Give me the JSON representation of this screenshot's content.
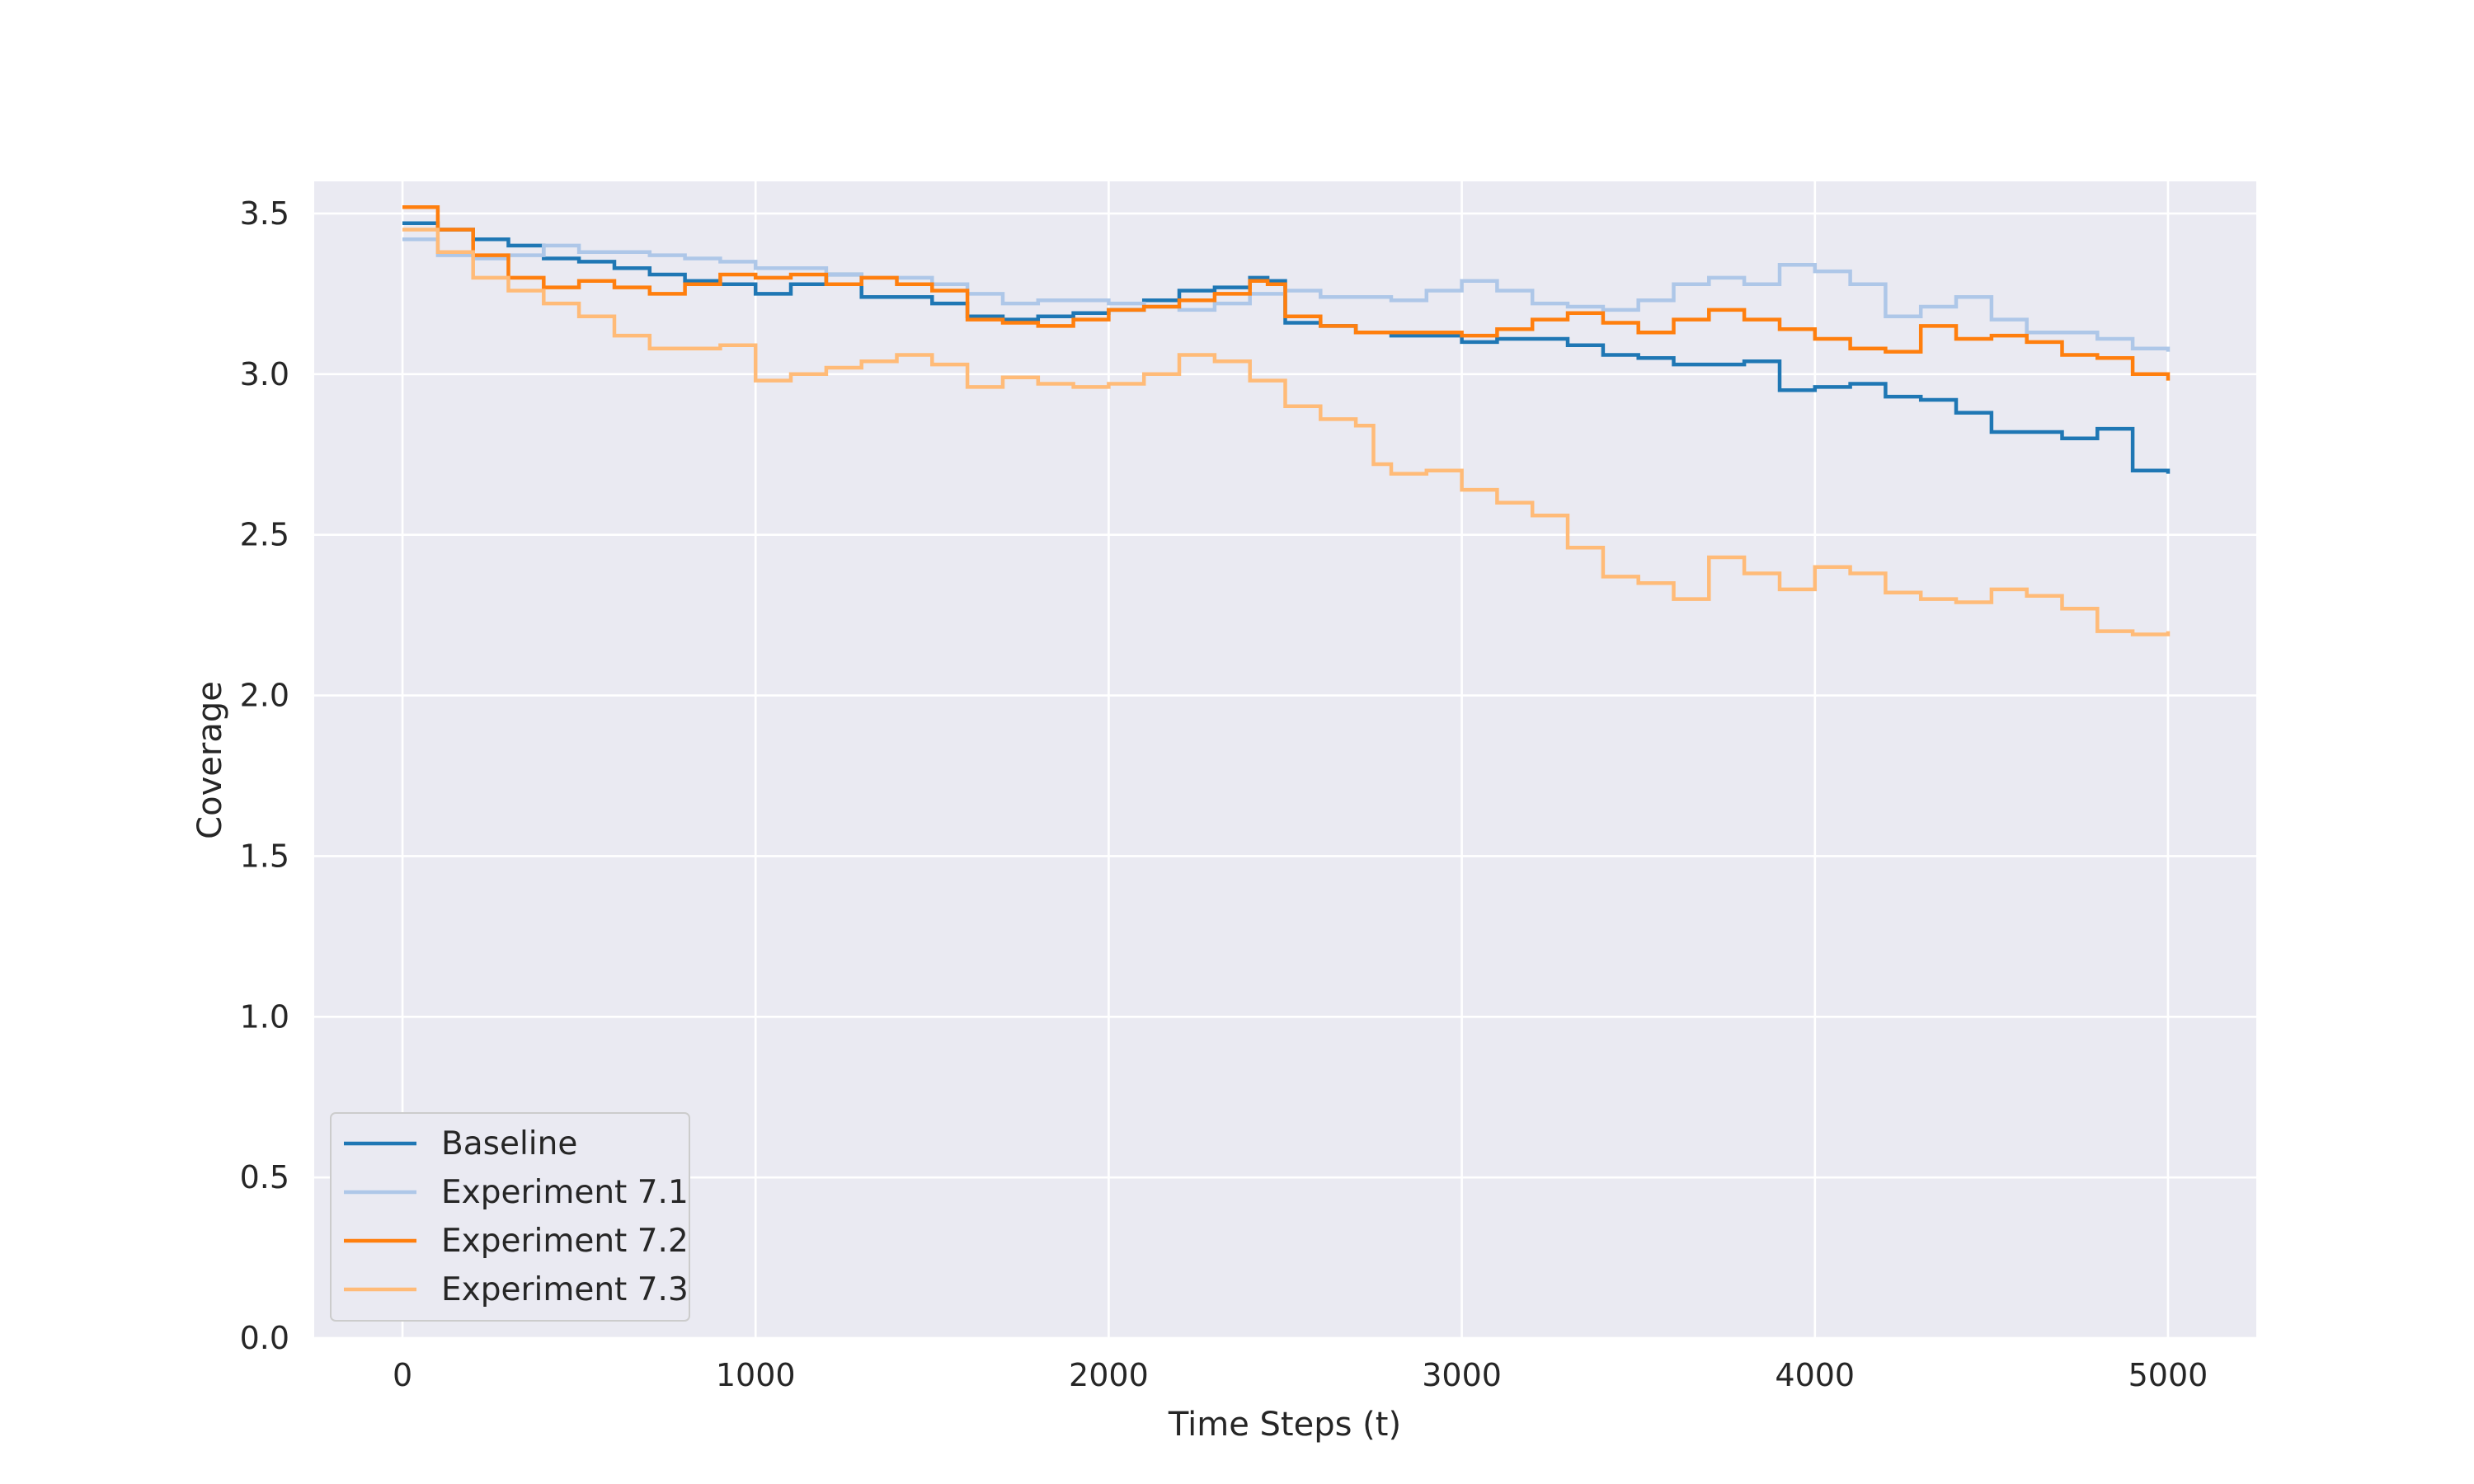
{
  "chart_data": {
    "type": "line",
    "title": "",
    "xlabel": "Time Steps (t)",
    "ylabel": "Coverage",
    "xlim": [
      -250,
      5250
    ],
    "ylim": [
      0,
      3.6
    ],
    "xticks": [
      0,
      1000,
      2000,
      3000,
      4000,
      5000
    ],
    "xtick_labels": [
      "0",
      "1000",
      "2000",
      "3000",
      "4000",
      "5000"
    ],
    "yticks": [
      0.0,
      0.5,
      1.0,
      1.5,
      2.0,
      2.5,
      3.0,
      3.5
    ],
    "ytick_labels": [
      "0.0",
      "0.5",
      "1.0",
      "1.5",
      "2.0",
      "2.5",
      "3.0",
      "3.5"
    ],
    "grid": true,
    "legend_position": "lower-left",
    "style": "step lines on grey background with white grid",
    "series": [
      {
        "name": "Baseline",
        "color": "#1f77b4",
        "x": [
          0,
          100,
          200,
          300,
          400,
          500,
          600,
          700,
          800,
          900,
          1000,
          1100,
          1200,
          1300,
          1400,
          1500,
          1600,
          1700,
          1800,
          1900,
          2000,
          2100,
          2200,
          2300,
          2400,
          2450,
          2500,
          2600,
          2700,
          2800,
          2900,
          3000,
          3100,
          3200,
          3300,
          3400,
          3500,
          3600,
          3700,
          3800,
          3900,
          4000,
          4100,
          4200,
          4300,
          4400,
          4500,
          4600,
          4700,
          4800,
          4900,
          5000
        ],
        "y": [
          3.47,
          3.45,
          3.42,
          3.4,
          3.36,
          3.35,
          3.33,
          3.31,
          3.29,
          3.28,
          3.25,
          3.28,
          3.31,
          3.24,
          3.24,
          3.22,
          3.18,
          3.17,
          3.18,
          3.19,
          3.2,
          3.23,
          3.26,
          3.27,
          3.3,
          3.29,
          3.16,
          3.15,
          3.13,
          3.12,
          3.12,
          3.1,
          3.11,
          3.11,
          3.09,
          3.06,
          3.05,
          3.03,
          3.03,
          3.04,
          2.95,
          2.96,
          2.97,
          2.93,
          2.92,
          2.88,
          2.82,
          2.82,
          2.8,
          2.83,
          2.7,
          2.69
        ]
      },
      {
        "name": "Experiment 7.1",
        "color": "#aec7e8",
        "x": [
          0,
          100,
          200,
          300,
          400,
          500,
          600,
          700,
          800,
          900,
          1000,
          1100,
          1200,
          1300,
          1400,
          1500,
          1600,
          1700,
          1800,
          1900,
          2000,
          2100,
          2200,
          2300,
          2400,
          2500,
          2600,
          2700,
          2800,
          2900,
          3000,
          3100,
          3200,
          3300,
          3400,
          3500,
          3600,
          3700,
          3800,
          3900,
          4000,
          4100,
          4200,
          4300,
          4400,
          4500,
          4600,
          4700,
          4800,
          4900,
          5000
        ],
        "y": [
          3.42,
          3.37,
          3.36,
          3.37,
          3.4,
          3.38,
          3.38,
          3.37,
          3.36,
          3.35,
          3.33,
          3.33,
          3.31,
          3.3,
          3.3,
          3.28,
          3.25,
          3.22,
          3.23,
          3.23,
          3.22,
          3.21,
          3.2,
          3.22,
          3.25,
          3.26,
          3.24,
          3.24,
          3.23,
          3.26,
          3.29,
          3.26,
          3.22,
          3.21,
          3.2,
          3.23,
          3.28,
          3.3,
          3.28,
          3.34,
          3.32,
          3.28,
          3.18,
          3.21,
          3.24,
          3.17,
          3.13,
          3.13,
          3.11,
          3.08,
          3.07
        ]
      },
      {
        "name": "Experiment 7.2",
        "color": "#ff7f0e",
        "x": [
          0,
          100,
          200,
          300,
          400,
          500,
          600,
          700,
          800,
          900,
          1000,
          1100,
          1200,
          1300,
          1400,
          1500,
          1600,
          1700,
          1800,
          1900,
          2000,
          2100,
          2200,
          2300,
          2400,
          2450,
          2500,
          2600,
          2700,
          2800,
          2900,
          3000,
          3100,
          3200,
          3300,
          3400,
          3500,
          3600,
          3700,
          3800,
          3900,
          4000,
          4100,
          4200,
          4300,
          4400,
          4500,
          4600,
          4700,
          4800,
          4900,
          5000
        ],
        "y": [
          3.52,
          3.45,
          3.37,
          3.3,
          3.27,
          3.29,
          3.27,
          3.25,
          3.28,
          3.31,
          3.3,
          3.31,
          3.28,
          3.3,
          3.28,
          3.26,
          3.17,
          3.16,
          3.15,
          3.17,
          3.2,
          3.21,
          3.23,
          3.25,
          3.29,
          3.28,
          3.18,
          3.15,
          3.13,
          3.13,
          3.13,
          3.12,
          3.14,
          3.17,
          3.19,
          3.16,
          3.13,
          3.17,
          3.2,
          3.17,
          3.14,
          3.11,
          3.08,
          3.07,
          3.15,
          3.11,
          3.12,
          3.1,
          3.06,
          3.05,
          3.0,
          2.98
        ]
      },
      {
        "name": "Experiment 7.3",
        "color": "#ffbb78",
        "x": [
          0,
          100,
          200,
          300,
          400,
          500,
          600,
          700,
          800,
          900,
          1000,
          1100,
          1200,
          1300,
          1400,
          1500,
          1600,
          1700,
          1800,
          1900,
          2000,
          2100,
          2200,
          2300,
          2400,
          2500,
          2600,
          2700,
          2750,
          2800,
          2900,
          3000,
          3100,
          3200,
          3300,
          3400,
          3500,
          3600,
          3700,
          3800,
          3900,
          4000,
          4100,
          4200,
          4300,
          4400,
          4500,
          4600,
          4700,
          4800,
          4900,
          5000
        ],
        "y": [
          3.45,
          3.38,
          3.3,
          3.26,
          3.22,
          3.18,
          3.12,
          3.08,
          3.08,
          3.09,
          2.98,
          3.0,
          3.02,
          3.04,
          3.06,
          3.03,
          2.96,
          2.99,
          2.97,
          2.96,
          2.97,
          3.0,
          3.06,
          3.04,
          2.98,
          2.9,
          2.86,
          2.84,
          2.72,
          2.69,
          2.7,
          2.64,
          2.6,
          2.56,
          2.46,
          2.37,
          2.35,
          2.3,
          2.43,
          2.38,
          2.33,
          2.4,
          2.38,
          2.32,
          2.3,
          2.29,
          2.33,
          2.31,
          2.27,
          2.2,
          2.19,
          2.2
        ]
      }
    ]
  }
}
